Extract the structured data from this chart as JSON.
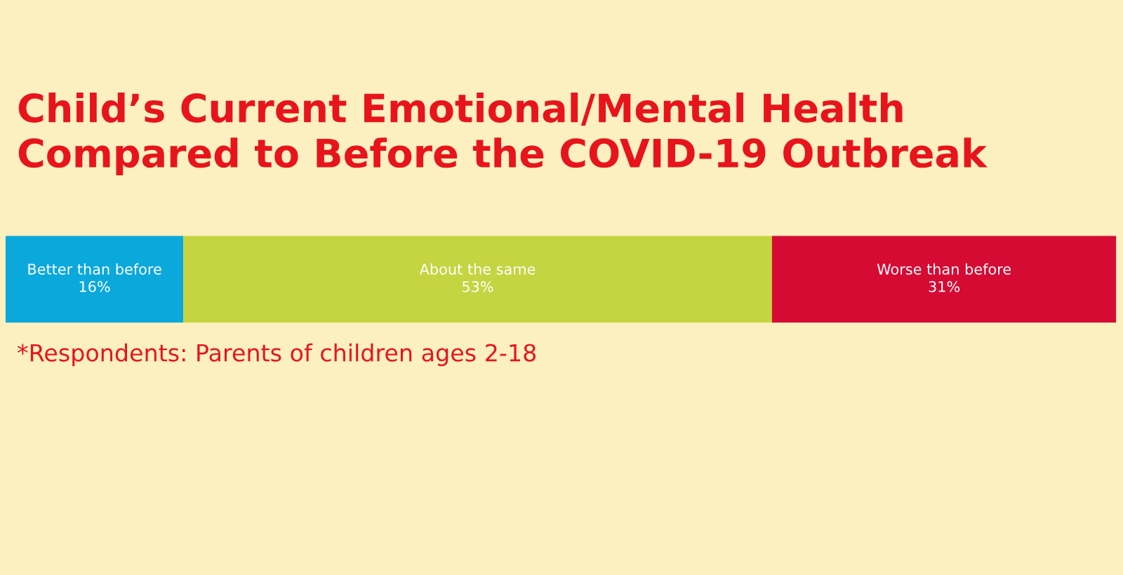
{
  "chart_data": {
    "type": "bar",
    "orientation": "horizontal",
    "stacked": true,
    "title": "Child’s Current Emotional/Mental Health\nCompared to Before the COVID-19 Outbreak",
    "categories": [
      null
    ],
    "series": [
      {
        "name": "Better than before",
        "color": "#0ba8dc",
        "values": [
          16
        ],
        "value_labels": [
          "16%"
        ]
      },
      {
        "name": "About the same",
        "color": "#c5d441",
        "values": [
          53
        ],
        "value_labels": [
          "53%"
        ]
      },
      {
        "name": "Worse than before",
        "color": "#d60b34",
        "values": [
          31
        ],
        "value_labels": [
          "31%"
        ]
      }
    ],
    "annotations": [
      "*Respondents: Parents of children ages 2-18"
    ],
    "legend": false
  }
}
